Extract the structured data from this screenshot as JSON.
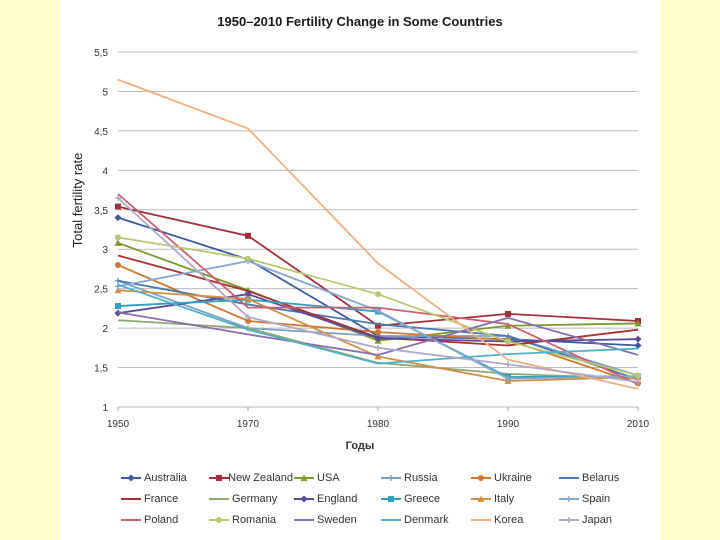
{
  "colors": {
    "background": "#FFFFCC",
    "panel": "#FFFFFF",
    "gridline": "#BBBBBB"
  },
  "chart_data": {
    "type": "line",
    "title": "1950–2010 Fertility Change in Some Countries",
    "xlabel": "Годы",
    "ylabel": "Total fertility rate",
    "categories": [
      "1950",
      "1970",
      "1980",
      "1990",
      "2010"
    ],
    "ylim": [
      1,
      5.5
    ],
    "yticks": [
      "1",
      "1,5",
      "2",
      "2,5",
      "3",
      "3,5",
      "4",
      "4,5",
      "5",
      "5,5"
    ],
    "ytick_values": [
      1,
      1.5,
      2,
      2.5,
      3,
      3.5,
      4,
      4.5,
      5,
      5.5
    ],
    "grid": true,
    "legend_position": "bottom",
    "series": [
      {
        "name": "Australia",
        "color": "#3A5BA0",
        "marker": "diamond",
        "values": [
          3.4,
          2.87,
          1.9,
          1.86,
          1.78
        ]
      },
      {
        "name": "New Zealand",
        "color": "#A0303A",
        "marker": "square",
        "values": [
          3.54,
          3.17,
          2.03,
          2.18,
          2.09
        ]
      },
      {
        "name": "USA",
        "color": "#7A9A30",
        "marker": "triangle",
        "values": [
          3.08,
          2.48,
          1.84,
          2.03,
          2.06
        ]
      },
      {
        "name": "Russia",
        "color": "#7AA0C8",
        "marker": "cross",
        "values": [
          2.6,
          2.0,
          1.9,
          1.9,
          1.4
        ]
      },
      {
        "name": "Ukraine",
        "color": "#D07830",
        "marker": "circle",
        "values": [
          2.8,
          2.09,
          1.95,
          1.85,
          1.3
        ]
      },
      {
        "name": "Belarus",
        "color": "#4A7AB0",
        "marker": "none",
        "values": [
          2.6,
          2.3,
          2.05,
          1.9,
          1.35
        ]
      },
      {
        "name": "France",
        "color": "#A83030",
        "marker": "none",
        "values": [
          2.92,
          2.47,
          1.88,
          1.78,
          1.98
        ]
      },
      {
        "name": "Germany",
        "color": "#90A870",
        "marker": "none",
        "values": [
          2.1,
          2.0,
          1.56,
          1.42,
          1.36
        ]
      },
      {
        "name": "England",
        "color": "#5A4A9A",
        "marker": "diamond",
        "values": [
          2.19,
          2.43,
          1.87,
          1.83,
          1.86
        ]
      },
      {
        "name": "Greece",
        "color": "#30A0C0",
        "marker": "square",
        "values": [
          2.28,
          2.36,
          2.21,
          1.38,
          1.39
        ]
      },
      {
        "name": "Italy",
        "color": "#D09048",
        "marker": "triangle",
        "values": [
          2.48,
          2.37,
          1.64,
          1.33,
          1.38
        ]
      },
      {
        "name": "Spain",
        "color": "#88A8D0",
        "marker": "cross",
        "values": [
          2.53,
          2.85,
          2.22,
          1.36,
          1.39
        ]
      },
      {
        "name": "Poland",
        "color": "#D06070",
        "marker": "none",
        "values": [
          3.7,
          2.26,
          2.26,
          2.05,
          1.29
        ]
      },
      {
        "name": "Romania",
        "color": "#B8C870",
        "marker": "circle",
        "values": [
          3.15,
          2.88,
          2.43,
          1.83,
          1.4
        ]
      },
      {
        "name": "Sweden",
        "color": "#8870B0",
        "marker": "none",
        "values": [
          2.2,
          1.92,
          1.66,
          2.13,
          1.66
        ]
      },
      {
        "name": "Denmark",
        "color": "#50B0C8",
        "marker": "none",
        "values": [
          2.55,
          1.98,
          1.55,
          1.67,
          1.74
        ]
      },
      {
        "name": "Korea",
        "color": "#F0B080",
        "marker": "none",
        "values": [
          5.15,
          4.53,
          2.82,
          1.6,
          1.23
        ]
      },
      {
        "name": "Japan",
        "color": "#B0A8C8",
        "marker": "cross",
        "values": [
          3.65,
          2.14,
          1.75,
          1.54,
          1.32
        ]
      }
    ]
  }
}
